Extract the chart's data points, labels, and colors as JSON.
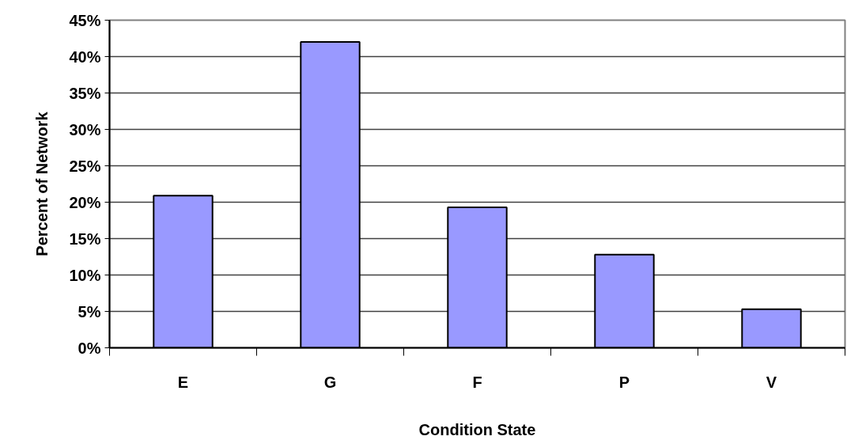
{
  "chart_data": {
    "type": "bar",
    "xlabel": "Condition State",
    "ylabel": "Percent of Network",
    "categories": [
      "E",
      "G",
      "F",
      "P",
      "V"
    ],
    "values": [
      20.9,
      42.0,
      19.3,
      12.8,
      5.3
    ],
    "color": "#9999ff",
    "ylim": [
      0,
      45
    ],
    "yticks": [
      {
        "value": 0,
        "label": "0%"
      },
      {
        "value": 5,
        "label": "5%"
      },
      {
        "value": 10,
        "label": "10%"
      },
      {
        "value": 15,
        "label": "15%"
      },
      {
        "value": 20,
        "label": "20%"
      },
      {
        "value": 25,
        "label": "25%"
      },
      {
        "value": 30,
        "label": "30%"
      },
      {
        "value": 35,
        "label": "35%"
      },
      {
        "value": 40,
        "label": "40%"
      },
      {
        "value": 45,
        "label": "45%"
      }
    ],
    "grid": "y"
  }
}
